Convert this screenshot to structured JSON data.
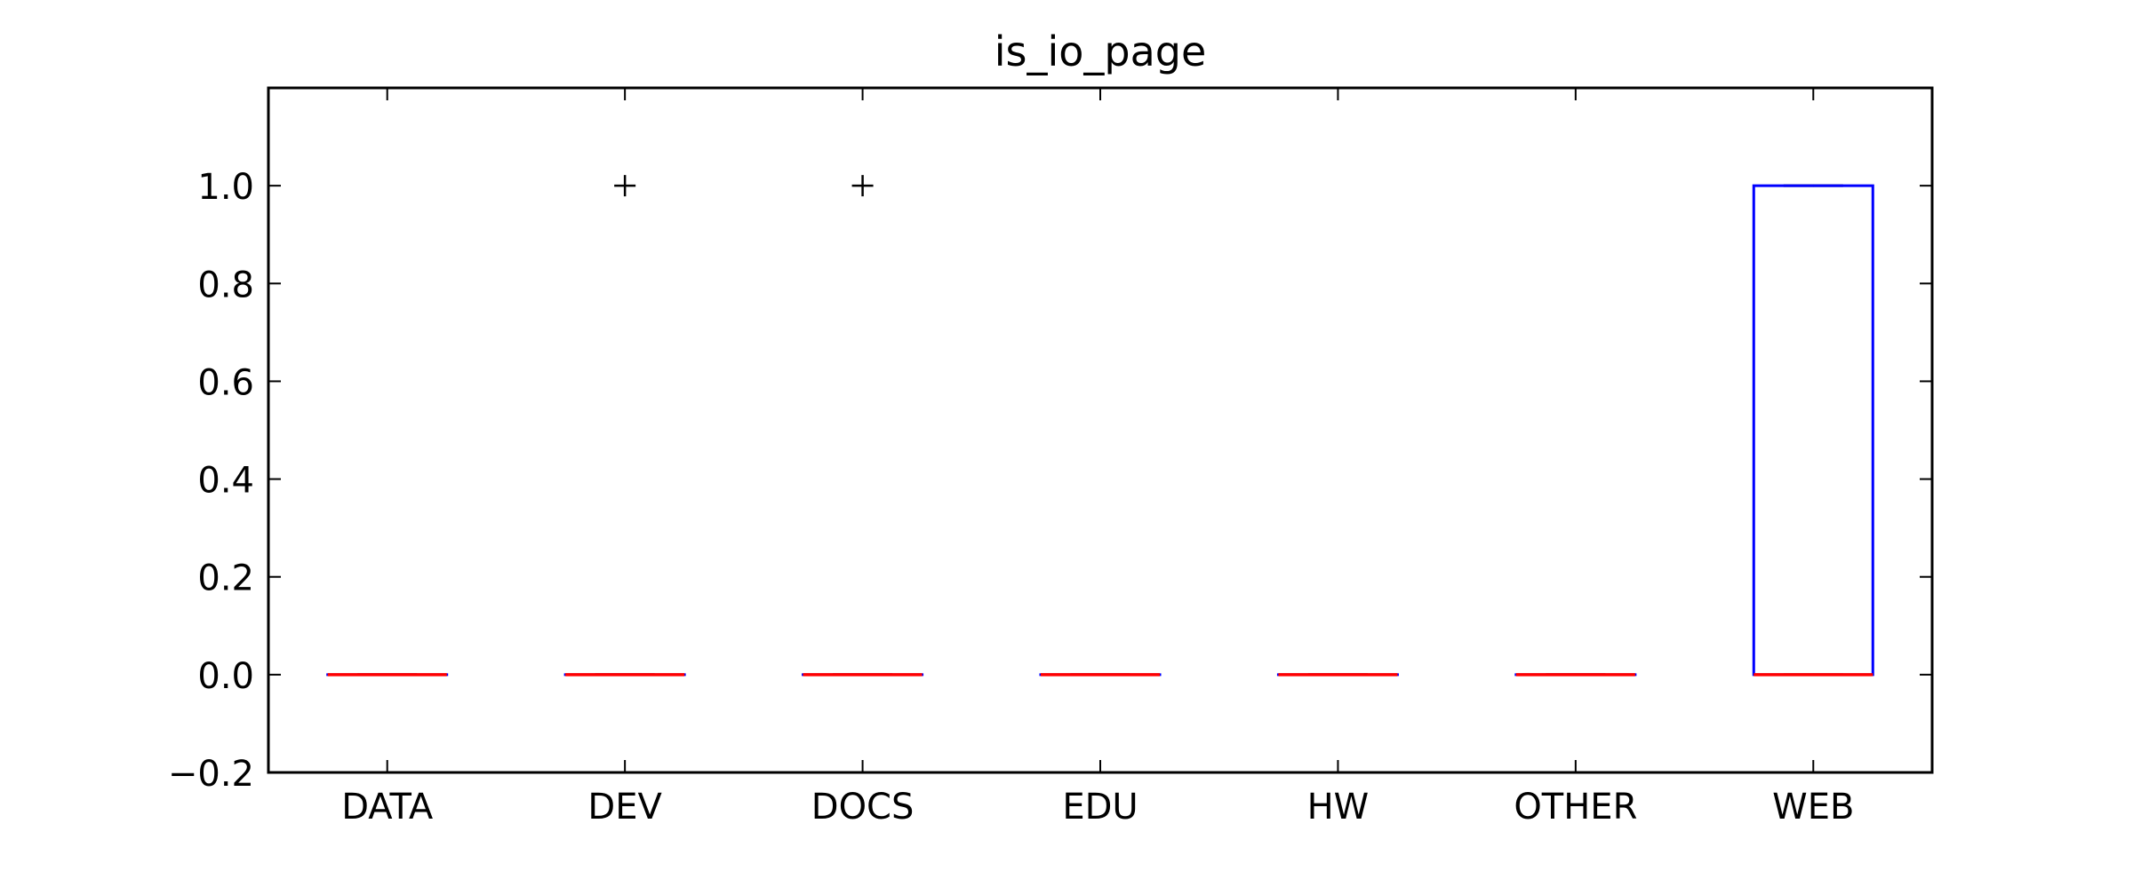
{
  "chart_data": {
    "type": "box",
    "title": "is_io_page",
    "xlabel": "",
    "ylabel": "",
    "ylim": [
      -0.2,
      1.2
    ],
    "yticks": [
      -0.2,
      0.0,
      0.2,
      0.4,
      0.6,
      0.8,
      1.0
    ],
    "ytick_labels": [
      "−0.2",
      "0.0",
      "0.2",
      "0.4",
      "0.6",
      "0.8",
      "1.0"
    ],
    "categories": [
      "DATA",
      "DEV",
      "DOCS",
      "EDU",
      "HW",
      "OTHER",
      "WEB"
    ],
    "boxes": [
      {
        "q1": 0.0,
        "median": 0.0,
        "q3": 0.0,
        "whisker_low": 0.0,
        "whisker_high": 0.0,
        "fliers": []
      },
      {
        "q1": 0.0,
        "median": 0.0,
        "q3": 0.0,
        "whisker_low": 0.0,
        "whisker_high": 0.0,
        "fliers": [
          1.0
        ]
      },
      {
        "q1": 0.0,
        "median": 0.0,
        "q3": 0.0,
        "whisker_low": 0.0,
        "whisker_high": 0.0,
        "fliers": [
          1.0
        ]
      },
      {
        "q1": 0.0,
        "median": 0.0,
        "q3": 0.0,
        "whisker_low": 0.0,
        "whisker_high": 0.0,
        "fliers": []
      },
      {
        "q1": 0.0,
        "median": 0.0,
        "q3": 0.0,
        "whisker_low": 0.0,
        "whisker_high": 0.0,
        "fliers": []
      },
      {
        "q1": 0.0,
        "median": 0.0,
        "q3": 0.0,
        "whisker_low": 0.0,
        "whisker_high": 0.0,
        "fliers": []
      },
      {
        "q1": 0.0,
        "median": 0.0,
        "q3": 1.0,
        "whisker_low": 0.0,
        "whisker_high": 1.0,
        "fliers": []
      }
    ],
    "grid": false,
    "colors": {
      "box": "#0000ff",
      "median": "#ff0000",
      "whisker": "#000000",
      "flier": "#000000",
      "axes": "#000000"
    }
  }
}
